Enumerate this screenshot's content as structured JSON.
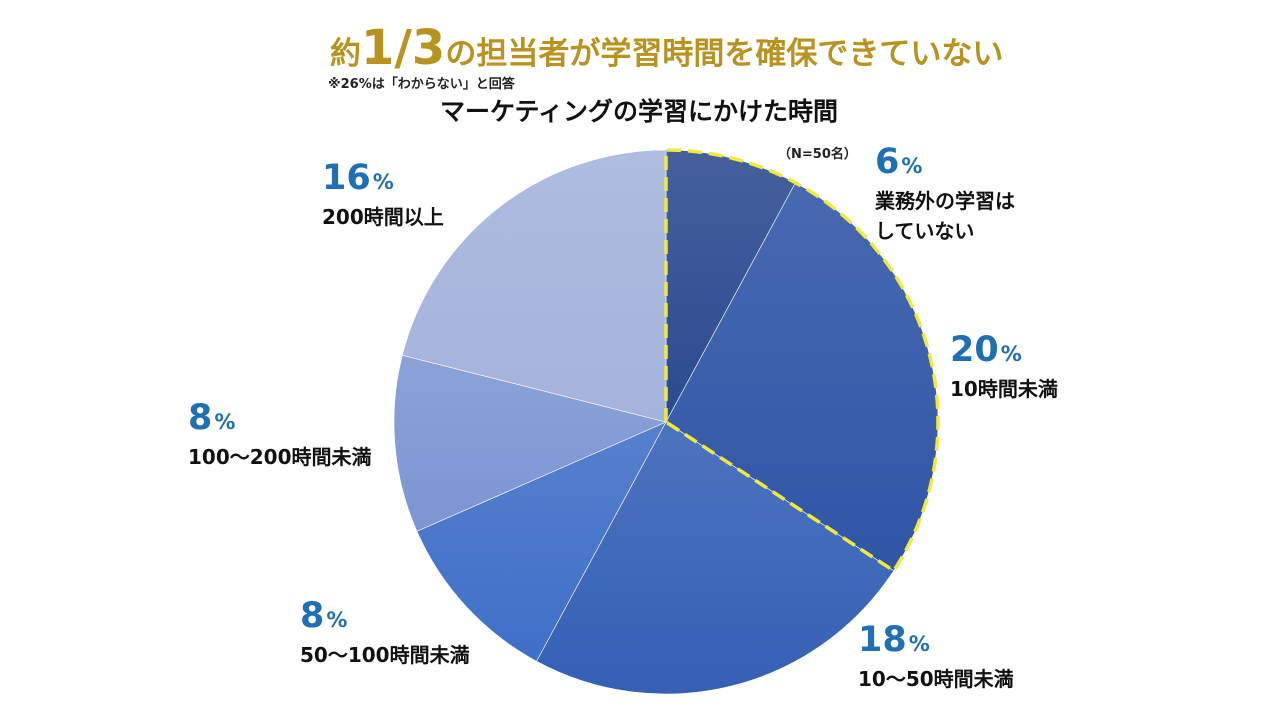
{
  "header": {
    "headline_prefix": "約",
    "headline_fraction": "1/3",
    "headline_rest": "の担当者が学習時間を確保できていない",
    "note": "※26%は「わからない」と回答"
  },
  "chart_data": {
    "type": "pie",
    "title": "マーケティングの学習にかけた時間",
    "sample_size": "（N=50名）",
    "slices": [
      {
        "label": "業務外の学習はしていない",
        "label_lines": [
          "業務外の学習は",
          "していない"
        ],
        "value": 6,
        "color": "#2b4a8f",
        "highlighted": true
      },
      {
        "label": "10時間未満",
        "label_lines": [
          "10時間未満"
        ],
        "value": 20,
        "color": "#2f55a6",
        "highlighted": true
      },
      {
        "label": "10〜50時間未満",
        "label_lines": [
          "10〜50時間未満"
        ],
        "value": 18,
        "color": "#3460b5",
        "highlighted": false
      },
      {
        "label": "50〜100時間未満",
        "label_lines": [
          "50〜100時間未満"
        ],
        "value": 8,
        "color": "#3f6fc8",
        "highlighted": false
      },
      {
        "label": "100〜200時間未満",
        "label_lines": [
          "100〜200時間未満"
        ],
        "value": 8,
        "color": "#7c95d3",
        "highlighted": false
      },
      {
        "label": "200時間以上",
        "label_lines": [
          "200時間以上"
        ],
        "value": 16,
        "color": "#a4b3dc",
        "highlighted": false
      }
    ],
    "percent_sign": "%",
    "highlight_color": "#f2ea3a"
  }
}
